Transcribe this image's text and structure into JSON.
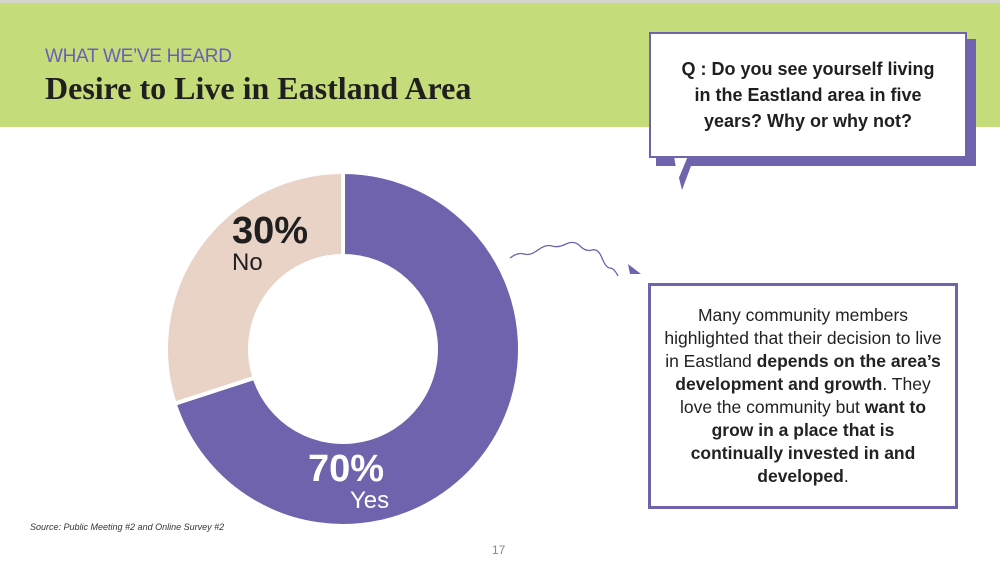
{
  "header": {
    "kicker": "WHAT WE’VE HEARD",
    "title": "Desire to Live in Eastland Area"
  },
  "question": "Q : Do you see yourself living in the Eastland area in five years? Why or why not?",
  "chart_data": {
    "type": "pie",
    "style": "donut",
    "categories": [
      "Yes",
      "No"
    ],
    "values": [
      70,
      30
    ],
    "labels": [
      "70%",
      "30%"
    ],
    "colors": [
      "#7063ae",
      "#e9d3c7"
    ]
  },
  "answer": {
    "parts": [
      {
        "text": "Many community members highlighted that their decision to live in Eastland ",
        "bold": false
      },
      {
        "text": "depends on the area’s development and growth",
        "bold": true
      },
      {
        "text": ". They love the community but ",
        "bold": false
      },
      {
        "text": "want to grow in a place that is continually invested in and developed",
        "bold": true
      },
      {
        "text": ".",
        "bold": false
      }
    ]
  },
  "source": "Source: Public Meeting #2 and Online Survey #2",
  "page_number": "17"
}
